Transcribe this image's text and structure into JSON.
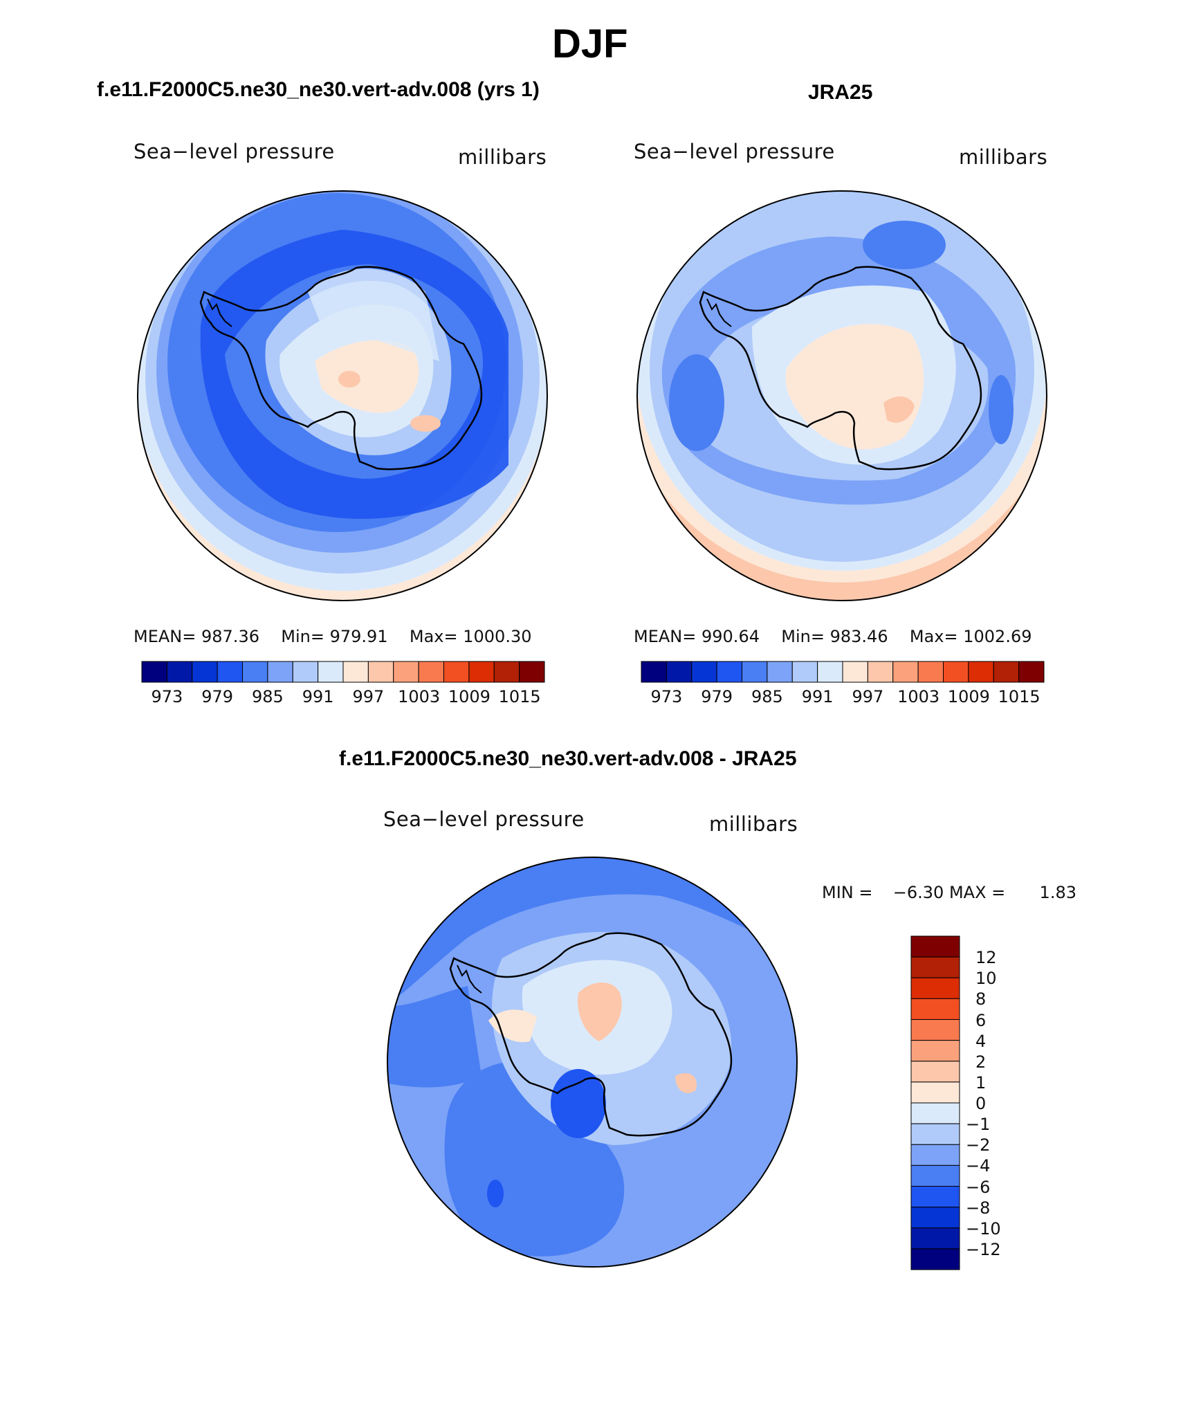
{
  "figure_title": "DJF",
  "panels": [
    {
      "title": "f.e11.F2000C5.ne30_ne30.vert-adv.008 (yrs 1)",
      "left_label": "Sea−level pressure",
      "right_label": "millibars",
      "stats": {
        "mean_label": "MEAN=",
        "mean": "987.36",
        "min_label": "Min=",
        "min": "979.91",
        "max_label": "Max=",
        "max": "1000.30"
      }
    },
    {
      "title": "JRA25",
      "left_label": "Sea−level pressure",
      "right_label": "millibars",
      "stats": {
        "mean_label": "MEAN=",
        "mean": "990.64",
        "min_label": "Min=",
        "min": "983.46",
        "max_label": "Max=",
        "max": "1002.69"
      }
    },
    {
      "title": "f.e11.F2000C5.ne30_ne30.vert-adv.008 - JRA25",
      "left_label": "Sea−level pressure",
      "right_label": "millibars",
      "stats": {
        "min_label": "MIN =",
        "min": "−6.30",
        "max_label": "MAX =",
        "max": "1.83"
      }
    }
  ],
  "colorbar_abs": {
    "tick_labels": [
      "973",
      "979",
      "985",
      "991",
      "997",
      "1003",
      "1009",
      "1015"
    ],
    "colors": [
      "#00007f",
      "#0018a8",
      "#0535d4",
      "#1f55f0",
      "#4a7ef3",
      "#7ca3f7",
      "#b0cbf9",
      "#dbeafb",
      "#fde8d8",
      "#fcc7ab",
      "#fba27c",
      "#f97a4f",
      "#f24f22",
      "#dc2d05",
      "#b22005",
      "#7f0000"
    ]
  },
  "colorbar_diff": {
    "tick_labels": [
      "12",
      "10",
      "8",
      "6",
      "4",
      "2",
      "1",
      "0",
      "−1",
      "−2",
      "−4",
      "−6",
      "−8",
      "−10",
      "−12"
    ],
    "colors": [
      "#7f0000",
      "#b22005",
      "#dc2d05",
      "#f24f22",
      "#f97a4f",
      "#fba27c",
      "#fcc7ab",
      "#fde8d8",
      "#dbeafb",
      "#b0cbf9",
      "#7ca3f7",
      "#4a7ef3",
      "#1f55f0",
      "#0535d4",
      "#0018a8",
      "#00007f"
    ]
  },
  "chart_data": [
    {
      "type": "heatmap",
      "title": "f.e11.F2000C5.ne30_ne30.vert-adv.008 (yrs 1)",
      "projection": "south polar stereographic",
      "variable": "Sea-level pressure",
      "units": "millibars",
      "levels": [
        973,
        976,
        979,
        982,
        985,
        988,
        991,
        994,
        997,
        1000,
        1003,
        1006,
        1009,
        1012,
        1015
      ],
      "mean": 987.36,
      "min": 979.91,
      "max": 1000.3
    },
    {
      "type": "heatmap",
      "title": "JRA25",
      "projection": "south polar stereographic",
      "variable": "Sea-level pressure",
      "units": "millibars",
      "levels": [
        973,
        976,
        979,
        982,
        985,
        988,
        991,
        994,
        997,
        1000,
        1003,
        1006,
        1009,
        1012,
        1015
      ],
      "mean": 990.64,
      "min": 983.46,
      "max": 1002.69
    },
    {
      "type": "heatmap",
      "title": "f.e11.F2000C5.ne30_ne30.vert-adv.008 - JRA25",
      "projection": "south polar stereographic",
      "variable": "Sea-level pressure",
      "units": "millibars",
      "levels": [
        -12,
        -10,
        -8,
        -6,
        -4,
        -2,
        -1,
        0,
        1,
        2,
        4,
        6,
        8,
        10,
        12
      ],
      "min": -6.3,
      "max": 1.83
    }
  ]
}
